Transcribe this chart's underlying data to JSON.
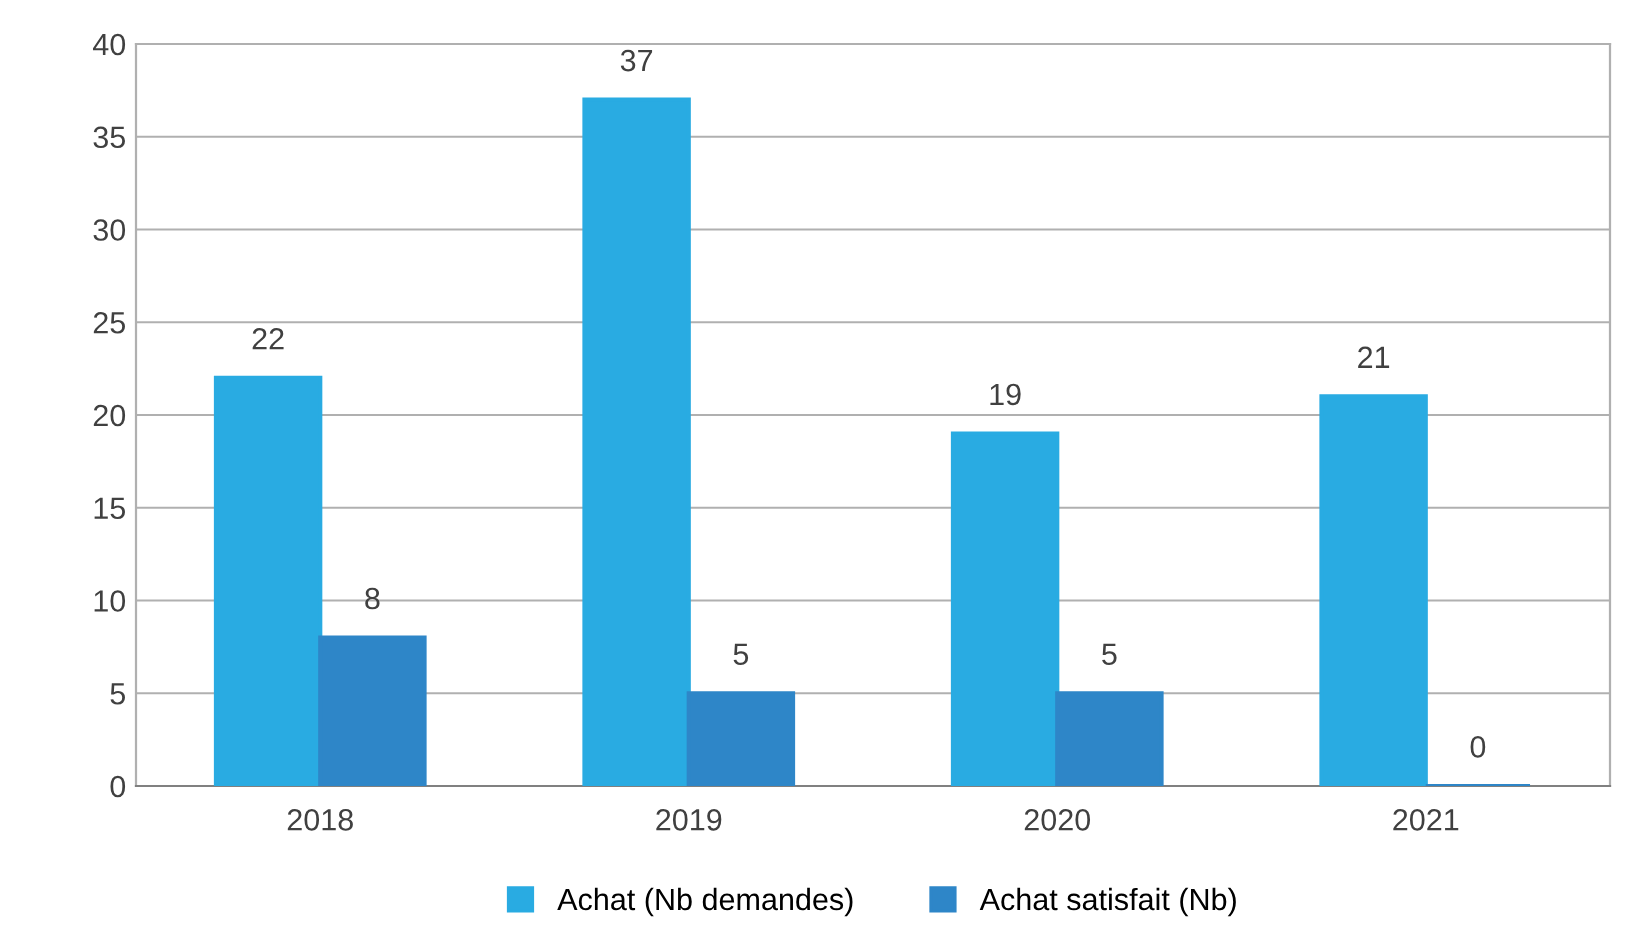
{
  "chart_data": {
    "type": "bar",
    "categories": [
      "2018",
      "2019",
      "2020",
      "2021"
    ],
    "series": [
      {
        "name": "Achat (Nb demandes)",
        "color": "#29abe2",
        "values": [
          22,
          37,
          19,
          21
        ]
      },
      {
        "name": "Achat satisfait (Nb)",
        "color": "#2e86c8",
        "values": [
          8,
          5,
          5,
          0
        ]
      }
    ],
    "ylim": [
      0,
      40
    ],
    "yticks": [
      0,
      5,
      10,
      15,
      20,
      25,
      30,
      35,
      40
    ],
    "grid": "y",
    "legend": "bottom",
    "data_labels": true
  }
}
